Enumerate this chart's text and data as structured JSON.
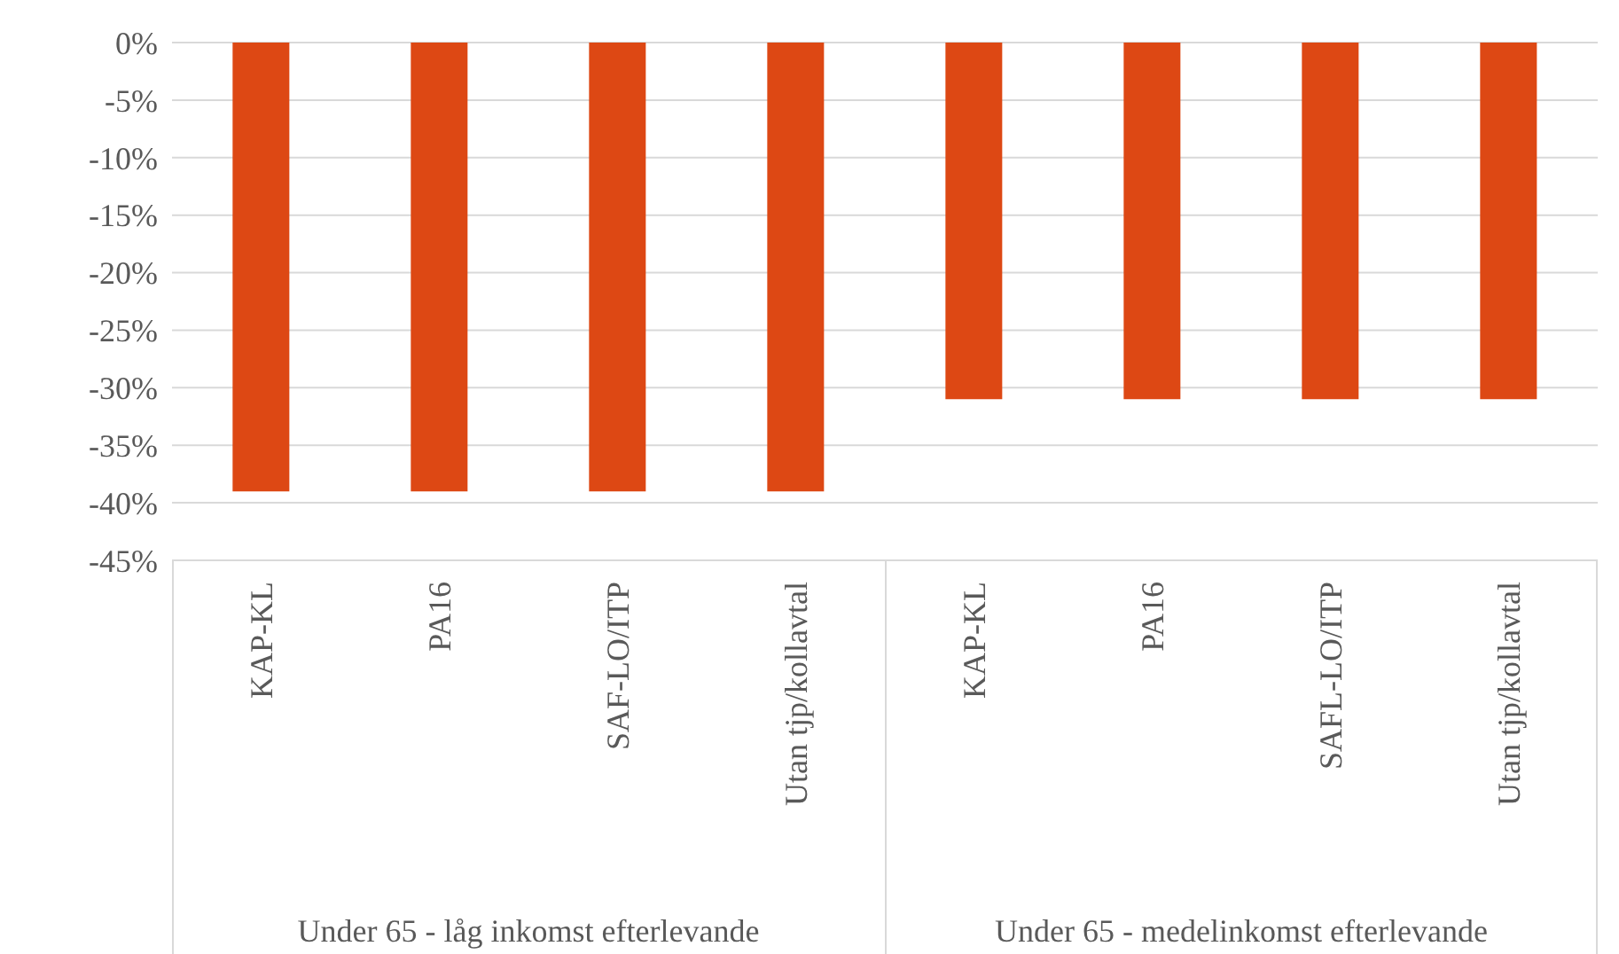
{
  "chart_data": {
    "type": "bar",
    "categories": [
      "KAP-KL",
      "PA16",
      "SAF-LO/ITP",
      "Utan tjp/kollavtal",
      "KAP-KL",
      "PA16",
      "SAFL-LO/ITP",
      "Utan tjp/kollavtal"
    ],
    "values": [
      -39,
      -39,
      -39,
      -39,
      -31,
      -31,
      -31,
      -31
    ],
    "color": "#dd4814",
    "ylim": [
      -45,
      0
    ],
    "yticks": [
      {
        "value": 0,
        "label": "0%"
      },
      {
        "value": -5,
        "label": "-5%"
      },
      {
        "value": -10,
        "label": "-10%"
      },
      {
        "value": -15,
        "label": "-15%"
      },
      {
        "value": -20,
        "label": "-20%"
      },
      {
        "value": -25,
        "label": "-25%"
      },
      {
        "value": -30,
        "label": "-30%"
      },
      {
        "value": -35,
        "label": "-35%"
      },
      {
        "value": -40,
        "label": "-40%"
      },
      {
        "value": -45,
        "label": "-45%"
      }
    ],
    "grid": "y",
    "annotations": [
      "Under 65 - låg inkomst efterlevande",
      "Under 65 -  medelinkomst efterlevande"
    ]
  }
}
